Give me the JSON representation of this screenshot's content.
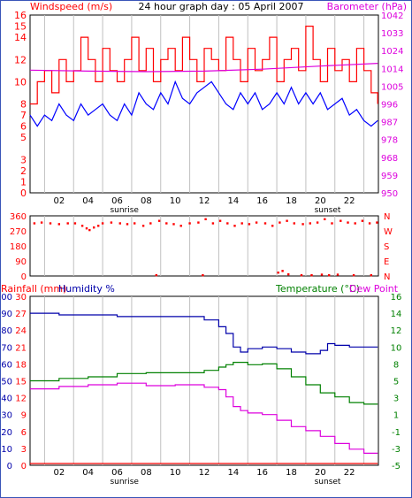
{
  "colors": {
    "frame": "#3a55b8",
    "plot_border": "#000000",
    "grid": "#c0c0c0",
    "red": "#ff0000",
    "magenta": "#dd00dd",
    "blue": "#0000ff",
    "darkblue": "#0000aa",
    "green": "#008000",
    "purple": "#800080"
  },
  "chart_data": [
    {
      "type": "line",
      "title": "24 hour graph day : 05 April 2007",
      "left_label": "Windspeed (m/s)",
      "right_label": "Barometer (hPa)",
      "hour_ticks": [
        "02",
        "04",
        "06",
        "08",
        "10",
        "12",
        "14",
        "16",
        "18",
        "20",
        "22"
      ],
      "sunrise_label": "sunrise",
      "sunset_label": "sunset",
      "sunrise_hour": 6.5,
      "sunset_hour": 20.5,
      "y_left": {
        "min": 0,
        "max": 16,
        "ticks": [
          0,
          1,
          2,
          3,
          5,
          6,
          7,
          8,
          10,
          12,
          14,
          15,
          16
        ],
        "tick_labels": [
          "0",
          "1",
          "2",
          "3",
          "5",
          "6",
          "7",
          "8",
          "10",
          "12",
          "14",
          "15",
          "16"
        ]
      },
      "y_right": {
        "min": 950,
        "max": 1042,
        "ticks": [
          "950",
          "959",
          "968",
          "978",
          "987",
          "996",
          "1005",
          "1014",
          "1024",
          "1033",
          "1042"
        ]
      },
      "series": [
        {
          "name": "Windspeed",
          "color": "red",
          "axis": "left",
          "style": "step",
          "x": [
            0.0,
            0.5,
            1.0,
            1.5,
            2.0,
            2.5,
            3.0,
            3.5,
            4.0,
            4.5,
            5.0,
            5.5,
            6.0,
            6.5,
            7.0,
            7.5,
            8.0,
            8.5,
            9.0,
            9.5,
            10.0,
            10.5,
            11.0,
            11.5,
            12.0,
            12.5,
            13.0,
            13.5,
            14.0,
            14.5,
            15.0,
            15.5,
            16.0,
            16.5,
            17.0,
            17.5,
            18.0,
            18.5,
            19.0,
            19.5,
            20.0,
            20.5,
            21.0,
            21.5,
            22.0,
            22.5,
            23.0,
            23.5,
            23.95
          ],
          "y": [
            8,
            10,
            11,
            9,
            12,
            10,
            11,
            14,
            12,
            10,
            13,
            11,
            10,
            12,
            14,
            11,
            13,
            10,
            12,
            13,
            11,
            14,
            12,
            10,
            13,
            12,
            11,
            14,
            12,
            10,
            13,
            11,
            12,
            14,
            10,
            12,
            13,
            11,
            15,
            12,
            10,
            13,
            11,
            12,
            10,
            13,
            11,
            9,
            8
          ]
        },
        {
          "name": "Windspeed mean",
          "color": "blue",
          "axis": "left",
          "style": "line",
          "x": [
            0.0,
            0.5,
            1.0,
            1.5,
            2.0,
            2.5,
            3.0,
            3.5,
            4.0,
            4.5,
            5.0,
            5.5,
            6.0,
            6.5,
            7.0,
            7.5,
            8.0,
            8.5,
            9.0,
            9.5,
            10.0,
            10.5,
            11.0,
            11.5,
            12.0,
            12.5,
            13.0,
            13.5,
            14.0,
            14.5,
            15.0,
            15.5,
            16.0,
            16.5,
            17.0,
            17.5,
            18.0,
            18.5,
            19.0,
            19.5,
            20.0,
            20.5,
            21.0,
            21.5,
            22.0,
            22.5,
            23.0,
            23.5,
            23.95
          ],
          "y": [
            7,
            6,
            7,
            6.5,
            8,
            7,
            6.5,
            8,
            7,
            7.5,
            8,
            7,
            6.5,
            8,
            7,
            9,
            8,
            7.5,
            9,
            8,
            10,
            8.5,
            8,
            9,
            9.5,
            10,
            9,
            8,
            7.5,
            9,
            8,
            9,
            7.5,
            8,
            9,
            8,
            9.5,
            8,
            9,
            8,
            9,
            7.5,
            8,
            8.5,
            7,
            7.5,
            6.5,
            6,
            6.5
          ]
        },
        {
          "name": "Barometer",
          "color": "magenta",
          "axis": "right",
          "style": "line",
          "x": [
            0,
            4,
            8,
            12,
            16,
            20,
            23.95
          ],
          "y": [
            1013.5,
            1013.0,
            1012.7,
            1013.0,
            1014.0,
            1015.6,
            1017.0
          ]
        }
      ]
    },
    {
      "type": "scatter",
      "title": "",
      "y_left": {
        "min": 0,
        "max": 360,
        "ticks": [
          "0",
          "90",
          "180",
          "270",
          "360"
        ]
      },
      "y_right": {
        "ticks": [
          "N",
          "E",
          "S",
          "W",
          "N"
        ]
      },
      "series": [
        {
          "name": "Wind direction",
          "color": "red",
          "x": [
            0.3,
            0.8,
            1.4,
            2.0,
            2.6,
            3.1,
            3.6,
            3.9,
            4.1,
            4.4,
            4.7,
            5.0,
            5.6,
            6.2,
            6.7,
            7.2,
            7.8,
            8.3,
            8.9,
            9.4,
            9.9,
            10.4,
            11.0,
            11.6,
            12.1,
            12.6,
            13.1,
            13.6,
            14.1,
            14.6,
            15.1,
            15.6,
            16.2,
            16.7,
            17.2,
            17.7,
            18.2,
            18.8,
            19.3,
            19.8,
            20.3,
            20.8,
            21.4,
            21.9,
            22.4,
            22.9,
            23.4,
            23.9,
            17.1,
            17.4,
            17.8,
            18.7,
            19.4,
            20.1,
            20.6,
            21.2,
            22.3,
            23.5,
            11.9,
            8.7
          ],
          "y": [
            315,
            320,
            315,
            310,
            315,
            315,
            300,
            285,
            275,
            290,
            300,
            315,
            320,
            315,
            310,
            315,
            300,
            315,
            330,
            315,
            310,
            300,
            315,
            320,
            340,
            315,
            330,
            315,
            300,
            315,
            310,
            320,
            315,
            300,
            320,
            330,
            315,
            310,
            315,
            320,
            340,
            315,
            330,
            320,
            315,
            330,
            315,
            320,
            20,
            30,
            10,
            5,
            5,
            8,
            5,
            8,
            5,
            5,
            5,
            5
          ]
        }
      ]
    },
    {
      "type": "line",
      "title": "",
      "left_label_1": "Rainfall (mm)",
      "left_label_2": "Humidity %",
      "right_label_1": "Temperature (°C)",
      "right_label_2": "Dew Point",
      "hour_ticks": [
        "02",
        "04",
        "06",
        "08",
        "10",
        "12",
        "14",
        "16",
        "18",
        "20",
        "22"
      ],
      "sunrise_label": "sunrise",
      "sunset_label": "sunset",
      "y_left_rain": {
        "ticks": [
          "0",
          "3",
          "6",
          "9",
          "12",
          "15",
          "18",
          "21",
          "24",
          "27",
          "30"
        ]
      },
      "y_left_hum": {
        "min": 0,
        "max": 100,
        "ticks": [
          "0",
          "10",
          "20",
          "30",
          "40",
          "50",
          "60",
          "70",
          "80",
          "90",
          "100"
        ]
      },
      "y_right": {
        "min": -5,
        "max": 16,
        "ticks": [
          "-5",
          "-3",
          "-1",
          "1",
          "3",
          "5",
          "8",
          "10",
          "12",
          "14",
          "16"
        ]
      },
      "series": [
        {
          "name": "Humidity",
          "color": "darkblue",
          "axis": "hum",
          "style": "step",
          "x": [
            0,
            2,
            4,
            6,
            8,
            10,
            12,
            13,
            13.5,
            14,
            14.5,
            15,
            16,
            17,
            18,
            19,
            20,
            20.5,
            21,
            22,
            23,
            23.95
          ],
          "y": [
            90,
            89,
            89,
            88,
            88,
            88,
            86,
            82,
            78,
            70,
            67,
            69,
            70,
            69,
            67,
            66,
            68,
            72,
            71,
            70,
            70,
            70
          ]
        },
        {
          "name": "Temperature",
          "color": "green",
          "axis": "temp",
          "style": "step",
          "x": [
            0,
            2,
            4,
            6,
            8,
            10,
            12,
            13,
            13.5,
            14,
            15,
            16,
            17,
            18,
            19,
            20,
            21,
            22,
            23,
            23.95
          ],
          "y": [
            5.5,
            5.8,
            6.0,
            6.4,
            6.5,
            6.5,
            6.8,
            7.2,
            7.5,
            7.8,
            7.5,
            7.6,
            7.0,
            6.0,
            5.0,
            4.0,
            3.5,
            2.8,
            2.6,
            2.6
          ]
        },
        {
          "name": "Dew Point",
          "color": "magenta",
          "axis": "temp",
          "style": "step",
          "x": [
            0,
            2,
            4,
            6,
            8,
            10,
            12,
            13,
            13.5,
            14,
            14.5,
            15,
            16,
            17,
            18,
            19,
            20,
            21,
            22,
            23,
            23.95
          ],
          "y": [
            4.5,
            4.8,
            5.0,
            5.2,
            4.9,
            5.0,
            4.7,
            4.4,
            3.5,
            2.3,
            1.8,
            1.5,
            1.3,
            0.6,
            -0.2,
            -0.7,
            -1.4,
            -2.3,
            -3.0,
            -3.5,
            -3.5
          ]
        },
        {
          "name": "Rainfall",
          "color": "red",
          "axis": "rain",
          "style": "line",
          "x": [
            0,
            23.95
          ],
          "y": [
            0,
            0
          ]
        }
      ]
    }
  ]
}
